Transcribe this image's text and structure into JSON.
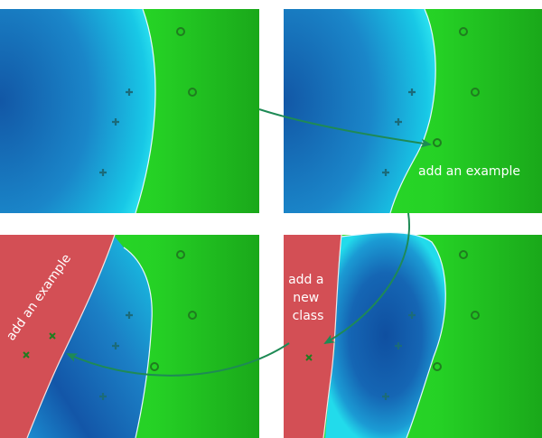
{
  "annotations": {
    "add_example_1": "add an example",
    "add_new_class": [
      "add a",
      "new",
      "class"
    ],
    "add_example_2": "add an example"
  },
  "colors": {
    "blue_deep": "#1560ae",
    "blue_mid": "#1b86c9",
    "cyan": "#15d4e8",
    "green": "#26d926",
    "green_dark": "#1aa81a",
    "red": "#d34f55",
    "arrow": "#1e8a55",
    "marker_blue": "#1b6b7a",
    "marker_green": "#1f7d1f"
  },
  "panels": [
    {
      "name": "initial",
      "plus_markers": [
        [
          143,
          102
        ],
        [
          128,
          135
        ],
        [
          114,
          191
        ]
      ],
      "circle_markers": [
        [
          200,
          35
        ],
        [
          213,
          102
        ]
      ],
      "cross_markers": []
    },
    {
      "name": "after-add-example",
      "plus_markers": [
        [
          456,
          102
        ],
        [
          441,
          135
        ],
        [
          427,
          191
        ]
      ],
      "circle_markers": [
        [
          513,
          35
        ],
        [
          526,
          102
        ],
        [
          484,
          158
        ]
      ],
      "cross_markers": []
    },
    {
      "name": "after-add-new-class",
      "plus_markers": [
        [
          456,
          349
        ],
        [
          441,
          383
        ],
        [
          427,
          439
        ]
      ],
      "circle_markers": [
        [
          513,
          282
        ],
        [
          526,
          349
        ],
        [
          484,
          406
        ]
      ],
      "cross_markers": [
        [
          342,
          396
        ]
      ]
    },
    {
      "name": "after-add-example-2",
      "plus_markers": [
        [
          143,
          349
        ],
        [
          128,
          383
        ],
        [
          114,
          439
        ]
      ],
      "circle_markers": [
        [
          200,
          282
        ],
        [
          213,
          349
        ],
        [
          171,
          406
        ]
      ],
      "cross_markers": [
        [
          58,
          372
        ],
        [
          29,
          393
        ]
      ]
    }
  ]
}
